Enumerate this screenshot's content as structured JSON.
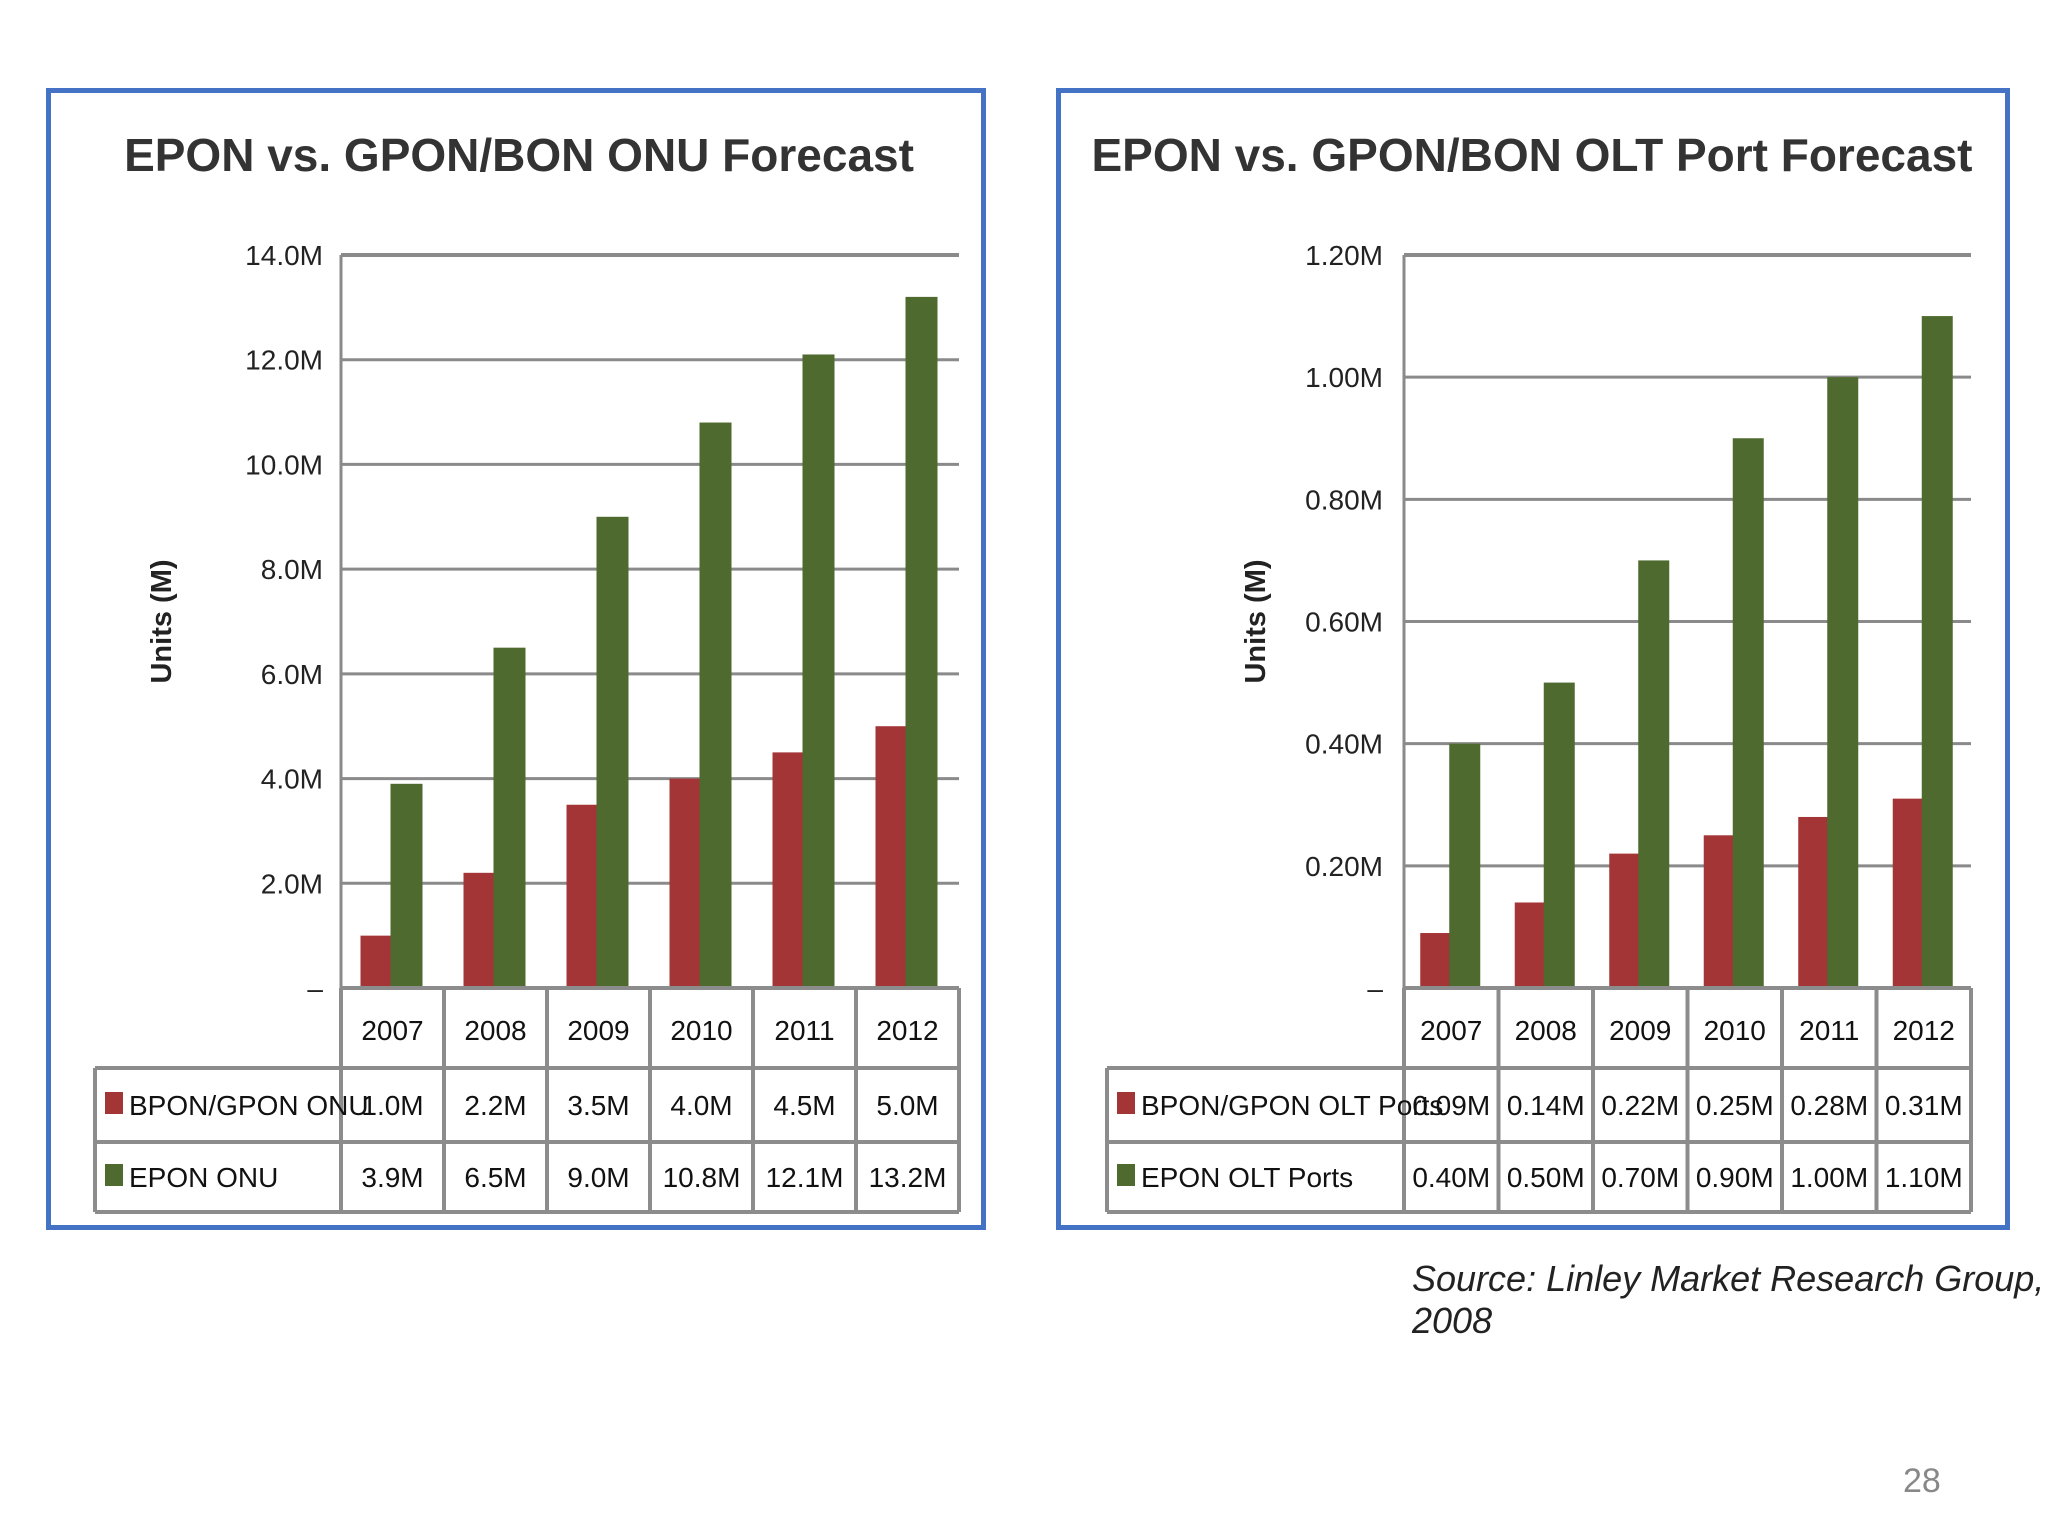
{
  "colors": {
    "series1": "#A33537",
    "series2": "#4E6A2E",
    "grid": "#8A8A8A",
    "frame": "#4472C4",
    "table": "#8C8C8C"
  },
  "chart_data": [
    {
      "type": "bar",
      "title": "EPON vs. GPON/BON ONU Forecast",
      "ylabel": "Units (M)",
      "ylim": [
        0,
        14
      ],
      "yticks": [
        0,
        2,
        4,
        6,
        8,
        10,
        12,
        14
      ],
      "ytick_labels": [
        "–",
        "2.0M",
        "4.0M",
        "6.0M",
        "8.0M",
        "10.0M",
        "12.0M",
        "14.0M"
      ],
      "categories": [
        "2007",
        "2008",
        "2009",
        "2010",
        "2011",
        "2012"
      ],
      "series": [
        {
          "name": "BPON/GPON ONU",
          "values": [
            1.0,
            2.2,
            3.5,
            4.0,
            4.5,
            5.0
          ],
          "labels": [
            "1.0M",
            "2.2M",
            "3.5M",
            "4.0M",
            "4.5M",
            "5.0M"
          ]
        },
        {
          "name": "EPON ONU",
          "values": [
            3.9,
            6.5,
            9.0,
            10.8,
            12.1,
            13.2
          ],
          "labels": [
            "3.9M",
            "6.5M",
            "9.0M",
            "10.8M",
            "12.1M",
            "13.2M"
          ]
        }
      ]
    },
    {
      "type": "bar",
      "title": "EPON vs. GPON/BON OLT Port Forecast",
      "ylabel": "Units (M)",
      "ylim": [
        0,
        1.2
      ],
      "yticks": [
        0,
        0.2,
        0.4,
        0.6,
        0.8,
        1.0,
        1.2
      ],
      "ytick_labels": [
        "–",
        "0.20M",
        "0.40M",
        "0.60M",
        "0.80M",
        "1.00M",
        "1.20M"
      ],
      "categories": [
        "2007",
        "2008",
        "2009",
        "2010",
        "2011",
        "2012"
      ],
      "series": [
        {
          "name": "BPON/GPON OLT Ports",
          "values": [
            0.09,
            0.14,
            0.22,
            0.25,
            0.28,
            0.31
          ],
          "labels": [
            "0.09M",
            "0.14M",
            "0.22M",
            "0.25M",
            "0.28M",
            "0.31M"
          ]
        },
        {
          "name": "EPON OLT Ports",
          "values": [
            0.4,
            0.5,
            0.7,
            0.9,
            1.0,
            1.1
          ],
          "labels": [
            "0.40M",
            "0.50M",
            "0.70M",
            "0.90M",
            "1.00M",
            "1.10M"
          ]
        }
      ]
    }
  ],
  "source": "Source: Linley Market Research Group, 2008",
  "page_number": "28"
}
